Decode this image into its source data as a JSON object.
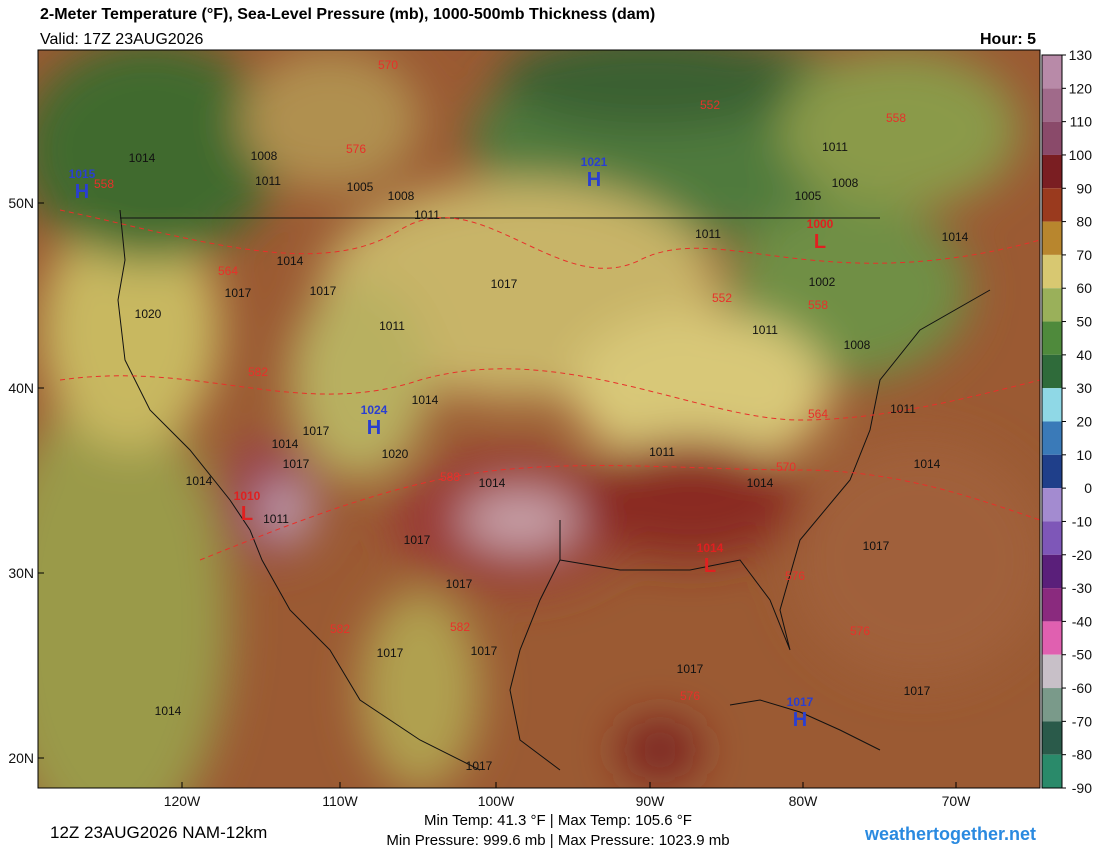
{
  "header": {
    "title": "2-Meter Temperature (°F), Sea-Level Pressure (mb), 1000-500mb Thickness (dam)",
    "valid": "Valid: 17Z 23AUG2026",
    "hour": "Hour: 5"
  },
  "map": {
    "lat_labels": [
      "50N",
      "40N",
      "30N",
      "20N"
    ],
    "lon_labels": [
      "120W",
      "110W",
      "100W",
      "90W",
      "80W",
      "70W"
    ],
    "pressure_centers": [
      {
        "symbol": "H",
        "value": "1015"
      },
      {
        "symbol": "H",
        "value": "1021"
      },
      {
        "symbol": "H",
        "value": "1024"
      },
      {
        "symbol": "H",
        "value": "1017"
      },
      {
        "symbol": "L",
        "value": "1000"
      },
      {
        "symbol": "L",
        "value": "1010"
      },
      {
        "symbol": "L",
        "value": "1014"
      }
    ],
    "isobar_labels": [
      "1014",
      "1008",
      "1011",
      "1005",
      "1008",
      "1011",
      "1014",
      "1017",
      "1017",
      "1020",
      "1011",
      "1017",
      "1014",
      "1017",
      "1014",
      "1017",
      "1020",
      "1014",
      "1011",
      "1014",
      "1011",
      "1014",
      "1017",
      "1017",
      "1017",
      "1017",
      "1017",
      "1014",
      "1017",
      "1017",
      "1014",
      "1017",
      "1011",
      "1008",
      "1002",
      "1005",
      "1008",
      "1011",
      "1011",
      "1014",
      "1011"
    ],
    "thickness_labels": [
      "570",
      "552",
      "558",
      "576",
      "564",
      "582",
      "552",
      "558",
      "564",
      "570",
      "588",
      "576",
      "582",
      "582",
      "576",
      "576",
      "558"
    ]
  },
  "colorbar": {
    "ticks": [
      130,
      120,
      110,
      100,
      90,
      80,
      70,
      60,
      50,
      40,
      30,
      20,
      10,
      0,
      -10,
      -20,
      -30,
      -40,
      -50,
      -60,
      -70,
      -80,
      -90
    ],
    "colors": [
      "#b88aa8",
      "#a06a8a",
      "#8a4a6a",
      "#7a1e22",
      "#9a3a1e",
      "#b8862e",
      "#d8c871",
      "#9ab05a",
      "#4f8a3c",
      "#2f6b3a",
      "#8fd8e6",
      "#3a7ab8",
      "#1f3f8a",
      "#a38bd0",
      "#7e57b8",
      "#5a1f7a",
      "#8a2a7e",
      "#e060b0",
      "#c8c0c8",
      "#7a9a8a",
      "#2a5a4a",
      "#2a8a6a"
    ]
  },
  "footer": {
    "run": "12Z 23AUG2026 NAM-12km",
    "temps": "Min Temp:  41.3 °F | Max Temp: 105.6 °F",
    "pressures": "Min Pressure: 999.6 mb | Max Pressure: 1023.9 mb",
    "site": "weathertogether.net"
  }
}
